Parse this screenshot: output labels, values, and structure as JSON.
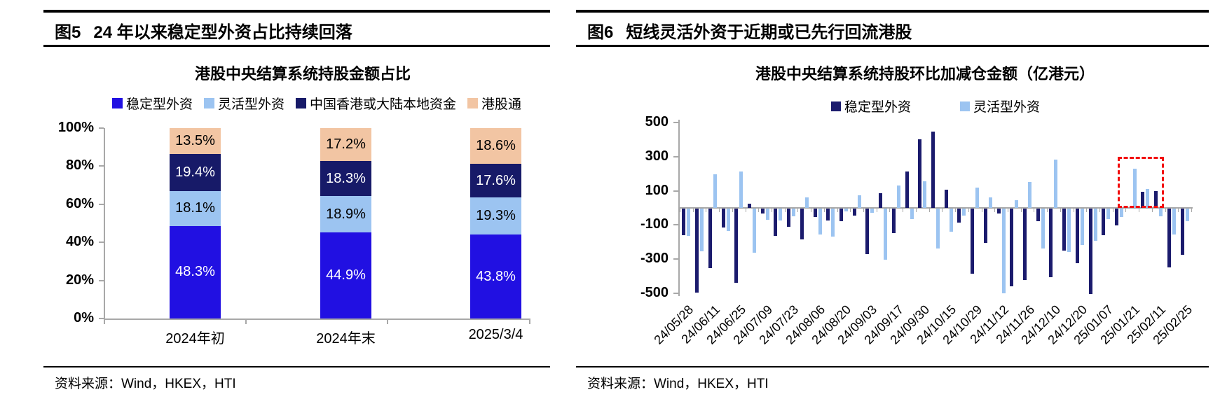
{
  "panels": {
    "left": {
      "figure_label": "图5",
      "header": "24 年以来稳定型外资占比持续回落",
      "source": "资料来源：Wind，HKEX，HTI"
    },
    "right": {
      "figure_label": "图6",
      "header": "短线灵活外资于近期或已先行回流港股",
      "source": "资料来源：Wind，HKEX，HTI"
    }
  },
  "chart_data": [
    {
      "type": "bar",
      "stacked": true,
      "title": "港股中央结算系统持股金额占比",
      "categories": [
        "2024年初",
        "2024年末",
        "2025/3/4"
      ],
      "series": [
        {
          "name": "稳定型外资",
          "color": "#2110e2",
          "label_color": "#ffffff",
          "values": [
            48.3,
            44.9,
            43.8
          ]
        },
        {
          "name": "灵活型外资",
          "color": "#9cc4f1",
          "label_color": "#000000",
          "values": [
            18.1,
            18.9,
            19.3
          ]
        },
        {
          "name": "中国香港或大陆本地资金",
          "color": "#171a68",
          "label_color": "#ffffff",
          "values": [
            19.4,
            18.3,
            17.6
          ]
        },
        {
          "name": "港股通",
          "color": "#f2c5a3",
          "label_color": "#000000",
          "values": [
            13.5,
            17.2,
            18.6
          ]
        }
      ],
      "value_suffix": "%",
      "y_ticks": [
        100,
        80,
        60,
        40,
        20,
        0
      ],
      "y_tick_suffix": "%",
      "ylim": [
        0,
        100
      ],
      "grid": false,
      "legend_position": "top"
    },
    {
      "type": "bar",
      "stacked": false,
      "title": "港股中央结算系统持股环比加减仓金额（亿港元）",
      "x_labels": [
        "24/05/28",
        "24/06/11",
        "24/06/25",
        "24/07/09",
        "24/07/23",
        "24/08/06",
        "24/08/20",
        "24/09/03",
        "24/09/17",
        "24/09/30",
        "24/10/15",
        "24/10/29",
        "24/11/12",
        "24/11/26",
        "24/12/10",
        "24/12/20",
        "25/01/07",
        "25/01/21",
        "25/02/11",
        "25/02/25"
      ],
      "label_every": 2,
      "series": [
        {
          "name": "稳定型外资",
          "color": "#1b1b6d",
          "values": [
            -155,
            -490,
            -350,
            -110,
            -435,
            25,
            -30,
            -160,
            -105,
            -180,
            -50,
            -70,
            -75,
            -40,
            -265,
            85,
            -145,
            215,
            400,
            445,
            105,
            -80,
            -380,
            -200,
            -30,
            -455,
            -420,
            -75,
            -400,
            -245,
            -320,
            -500,
            -155,
            -100,
            0,
            95,
            100,
            -345,
            -270
          ]
        },
        {
          "name": "灵活型外资",
          "color": "#9cc4f1",
          "values": [
            -160,
            -250,
            195,
            -130,
            215,
            -260,
            -65,
            -70,
            -45,
            60,
            -150,
            -165,
            -15,
            75,
            -25,
            -300,
            130,
            -60,
            155,
            -235,
            -135,
            -40,
            120,
            60,
            -495,
            45,
            150,
            -235,
            283,
            -255,
            -215,
            -190,
            -60,
            -50,
            230,
            110,
            -45,
            -150,
            -75
          ]
        }
      ],
      "y_ticks": [
        500,
        300,
        100,
        -100,
        -300,
        -500
      ],
      "ylim": [
        -500,
        500
      ],
      "grid": false,
      "legend_position": "top",
      "annotation_box": {
        "color": "#f20d0d",
        "start_index": 33.4,
        "end_index": 36.9,
        "value_top": 300,
        "value_bottom": 0
      }
    }
  ]
}
